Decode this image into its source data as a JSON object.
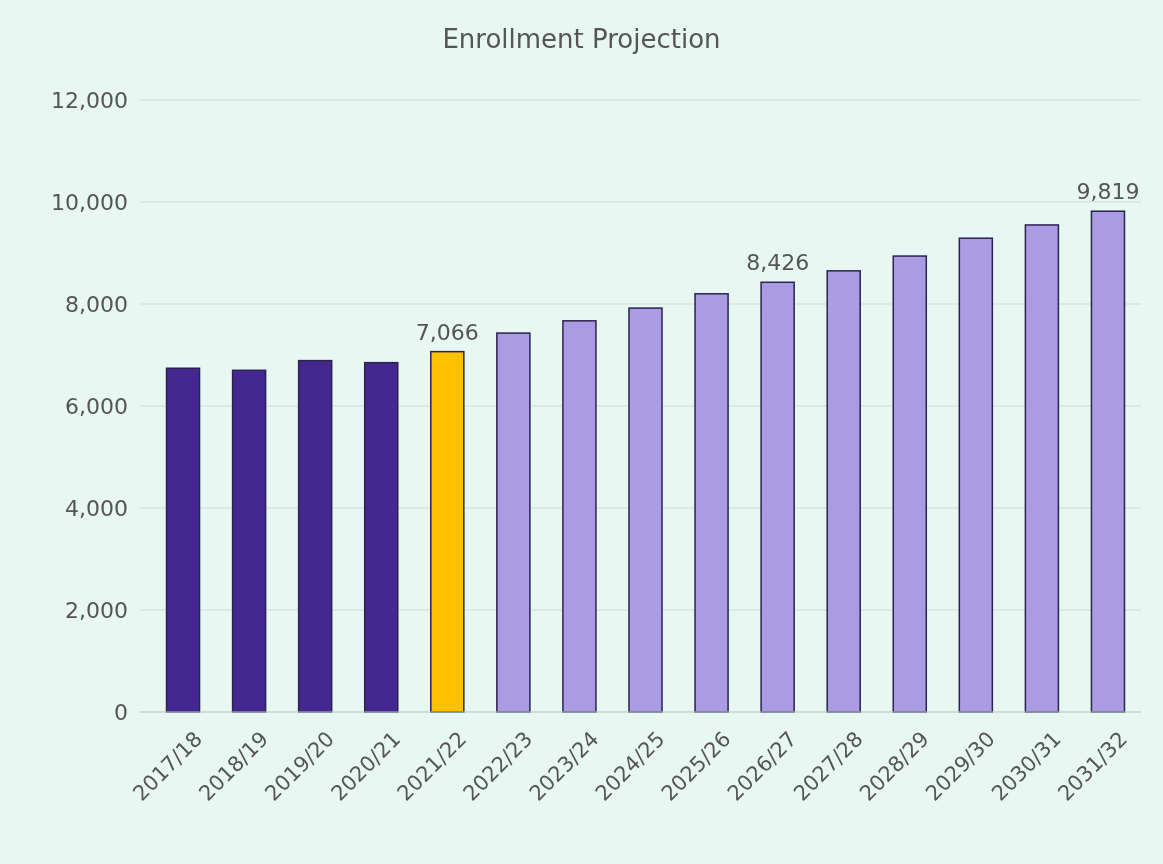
{
  "chart_data": {
    "type": "bar",
    "title": "Enrollment Projection",
    "categories": [
      "2017/18",
      "2018/19",
      "2019/20",
      "2020/21",
      "2021/22",
      "2022/23",
      "2023/24",
      "2024/25",
      "2025/26",
      "2026/27",
      "2027/28",
      "2028/29",
      "2029/30",
      "2030/31",
      "2031/32"
    ],
    "values": [
      6740,
      6700,
      6890,
      6850,
      7066,
      7430,
      7670,
      7920,
      8200,
      8426,
      8650,
      8940,
      9290,
      9550,
      9819
    ],
    "colors": [
      "#44288f",
      "#44288f",
      "#44288f",
      "#44288f",
      "#ffc000",
      "#ab9be3",
      "#ab9be3",
      "#ab9be3",
      "#ab9be3",
      "#ab9be3",
      "#ab9be3",
      "#ab9be3",
      "#ab9be3",
      "#ab9be3",
      "#ab9be3"
    ],
    "value_labels": [
      null,
      null,
      null,
      null,
      "7,066",
      null,
      null,
      null,
      null,
      "8,426",
      null,
      null,
      null,
      null,
      "9,819"
    ],
    "ylim": [
      0,
      12000
    ],
    "yticks": [
      {
        "value": 0,
        "label": "0"
      },
      {
        "value": 2000,
        "label": "2,000"
      },
      {
        "value": 4000,
        "label": "4,000"
      },
      {
        "value": 6000,
        "label": "6,000"
      },
      {
        "value": 8000,
        "label": "8,000"
      },
      {
        "value": 10000,
        "label": "10,000"
      },
      {
        "value": 12000,
        "label": "12,000"
      }
    ],
    "grid": "y"
  }
}
